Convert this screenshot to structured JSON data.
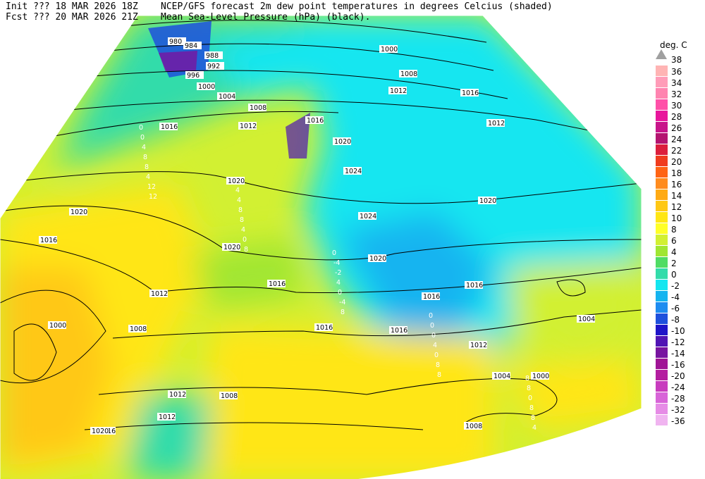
{
  "header": {
    "init": "Init  ??? 18 MAR 2026 18Z",
    "fcst": "Fcst ??? 20 MAR 2026 21Z",
    "title": "NCEP/GFS forecast 2m dew point temperatures in degrees Celcius (shaded)",
    "subtitle": "Mean Sea-Level Pressure (hPa) (black)."
  },
  "colorbar": {
    "unit": "deg. C",
    "top": 38,
    "top_color": "#a0a0a0",
    "levels": [
      36,
      34,
      32,
      30,
      28,
      26,
      24,
      22,
      20,
      18,
      16,
      14,
      12,
      10,
      8,
      6,
      4,
      2,
      0,
      -2,
      -4,
      -6,
      -8,
      -10,
      -12,
      -14,
      -16,
      -20,
      -24,
      -28,
      -32,
      -36
    ],
    "colors": [
      "#ffb4b4",
      "#ff9cb8",
      "#ff84b0",
      "#ff50a8",
      "#e8169c",
      "#c8148a",
      "#b41470",
      "#dc1e3c",
      "#f03c1e",
      "#ff6414",
      "#ff8c1e",
      "#ffaa14",
      "#ffc814",
      "#ffe614",
      "#ffff28",
      "#d2f032",
      "#a0e632",
      "#50dc64",
      "#32dcaa",
      "#14e6f0",
      "#14b4f0",
      "#1e8cf0",
      "#1e50dc",
      "#1e14c8",
      "#5014b4",
      "#7814a0",
      "#a01496",
      "#b41ea0",
      "#c83cbe",
      "#d864d8",
      "#e68ce6",
      "#f0b4f0"
    ]
  },
  "isobar_labels": [
    980,
    984,
    988,
    992,
    996,
    1000,
    1004,
    1008,
    1012,
    1016,
    1020,
    1020,
    1016,
    1012,
    1008,
    1004,
    1000,
    1016,
    1020,
    1024,
    1024,
    1020,
    1016,
    1020,
    1016,
    1016,
    1016,
    1016,
    1020,
    1016,
    1012,
    1000,
    1008,
    1012,
    1008,
    1012,
    1008,
    1004,
    1000,
    1004,
    1008,
    1012,
    1012,
    1016,
    1020
  ],
  "dewpoint_labels": [
    -4,
    0,
    4,
    0,
    0,
    8,
    4,
    0,
    4,
    -4,
    0,
    8,
    4,
    4,
    8,
    -2,
    0,
    0,
    12,
    8,
    8,
    4,
    4,
    8,
    12,
    8,
    4,
    0,
    0,
    8,
    4,
    4,
    0,
    -4,
    8,
    4,
    0,
    12,
    8,
    8,
    8,
    4,
    2,
    12
  ]
}
